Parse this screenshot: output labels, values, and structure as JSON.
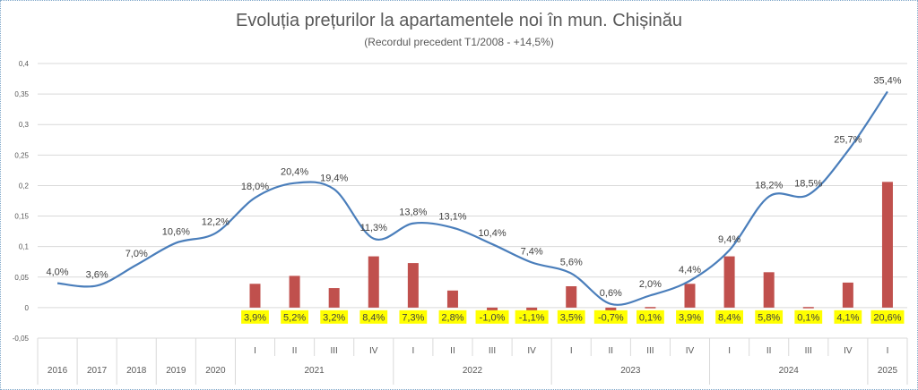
{
  "chart_data": {
    "type": "line",
    "title": "Evoluția prețurilor la apartamentele noi în mun. Chișinău",
    "subtitle": "(Recordul precedent T1/2008 - +14,5%)",
    "ylim": [
      -0.05,
      0.4
    ],
    "yticks": [
      "0,4",
      "0,35",
      "0,3",
      "0,25",
      "0,2",
      "0,15",
      "0,1",
      "0,05",
      "0",
      "-0,05"
    ],
    "ytick_values": [
      0.4,
      0.35,
      0.3,
      0.25,
      0.2,
      0.15,
      0.1,
      0.05,
      0,
      -0.05
    ],
    "grid": true,
    "categories": [
      "2016",
      "2017",
      "2018",
      "2019",
      "2020",
      "I",
      "II",
      "III",
      "IV",
      "I",
      "II",
      "III",
      "IV",
      "I",
      "II",
      "III",
      "IV",
      "I",
      "II",
      "III",
      "IV",
      "I"
    ],
    "year_groups": [
      {
        "label": "2021",
        "start": 5,
        "end": 8
      },
      {
        "label": "2022",
        "start": 9,
        "end": 12
      },
      {
        "label": "2023",
        "start": 13,
        "end": 16
      },
      {
        "label": "2024",
        "start": 17,
        "end": 20
      },
      {
        "label": "2025",
        "start": 21,
        "end": 21
      }
    ],
    "colors": {
      "line": "#4a7ebb",
      "bar": "#c0504d",
      "label_bg": "#ffff00",
      "grid": "#d9d9d9",
      "text": "#404040"
    },
    "series": [
      {
        "kind": "line",
        "values": [
          0.04,
          0.036,
          0.07,
          0.106,
          0.122,
          0.18,
          0.204,
          0.194,
          0.113,
          0.138,
          0.131,
          0.104,
          0.074,
          0.056,
          0.006,
          0.02,
          0.044,
          0.094,
          0.182,
          0.185,
          0.257,
          0.354
        ],
        "labels": [
          "4,0%",
          "3,6%",
          "7,0%",
          "10,6%",
          "12,2%",
          "18,0%",
          "20,4%",
          "19,4%",
          "11,3%",
          "13,8%",
          "13,1%",
          "10,4%",
          "7,4%",
          "5,6%",
          "0,6%",
          "2,0%",
          "4,4%",
          "9,4%",
          "18,2%",
          "18,5%",
          "25,7%",
          "35,4%"
        ]
      },
      {
        "kind": "bar",
        "values": [
          null,
          null,
          null,
          null,
          null,
          0.039,
          0.052,
          0.032,
          0.084,
          0.073,
          0.028,
          -0.01,
          -0.011,
          0.035,
          -0.007,
          0.001,
          0.039,
          0.084,
          0.058,
          0.001,
          0.041,
          0.206
        ],
        "labels": [
          null,
          null,
          null,
          null,
          null,
          "3,9%",
          "5,2%",
          "3,2%",
          "8,4%",
          "7,3%",
          "2,8%",
          "-1,0%",
          "-1,1%",
          "3,5%",
          "-0,7%",
          "0,1%",
          "3,9%",
          "8,4%",
          "5,8%",
          "0,1%",
          "4,1%",
          "20,6%"
        ]
      }
    ]
  }
}
